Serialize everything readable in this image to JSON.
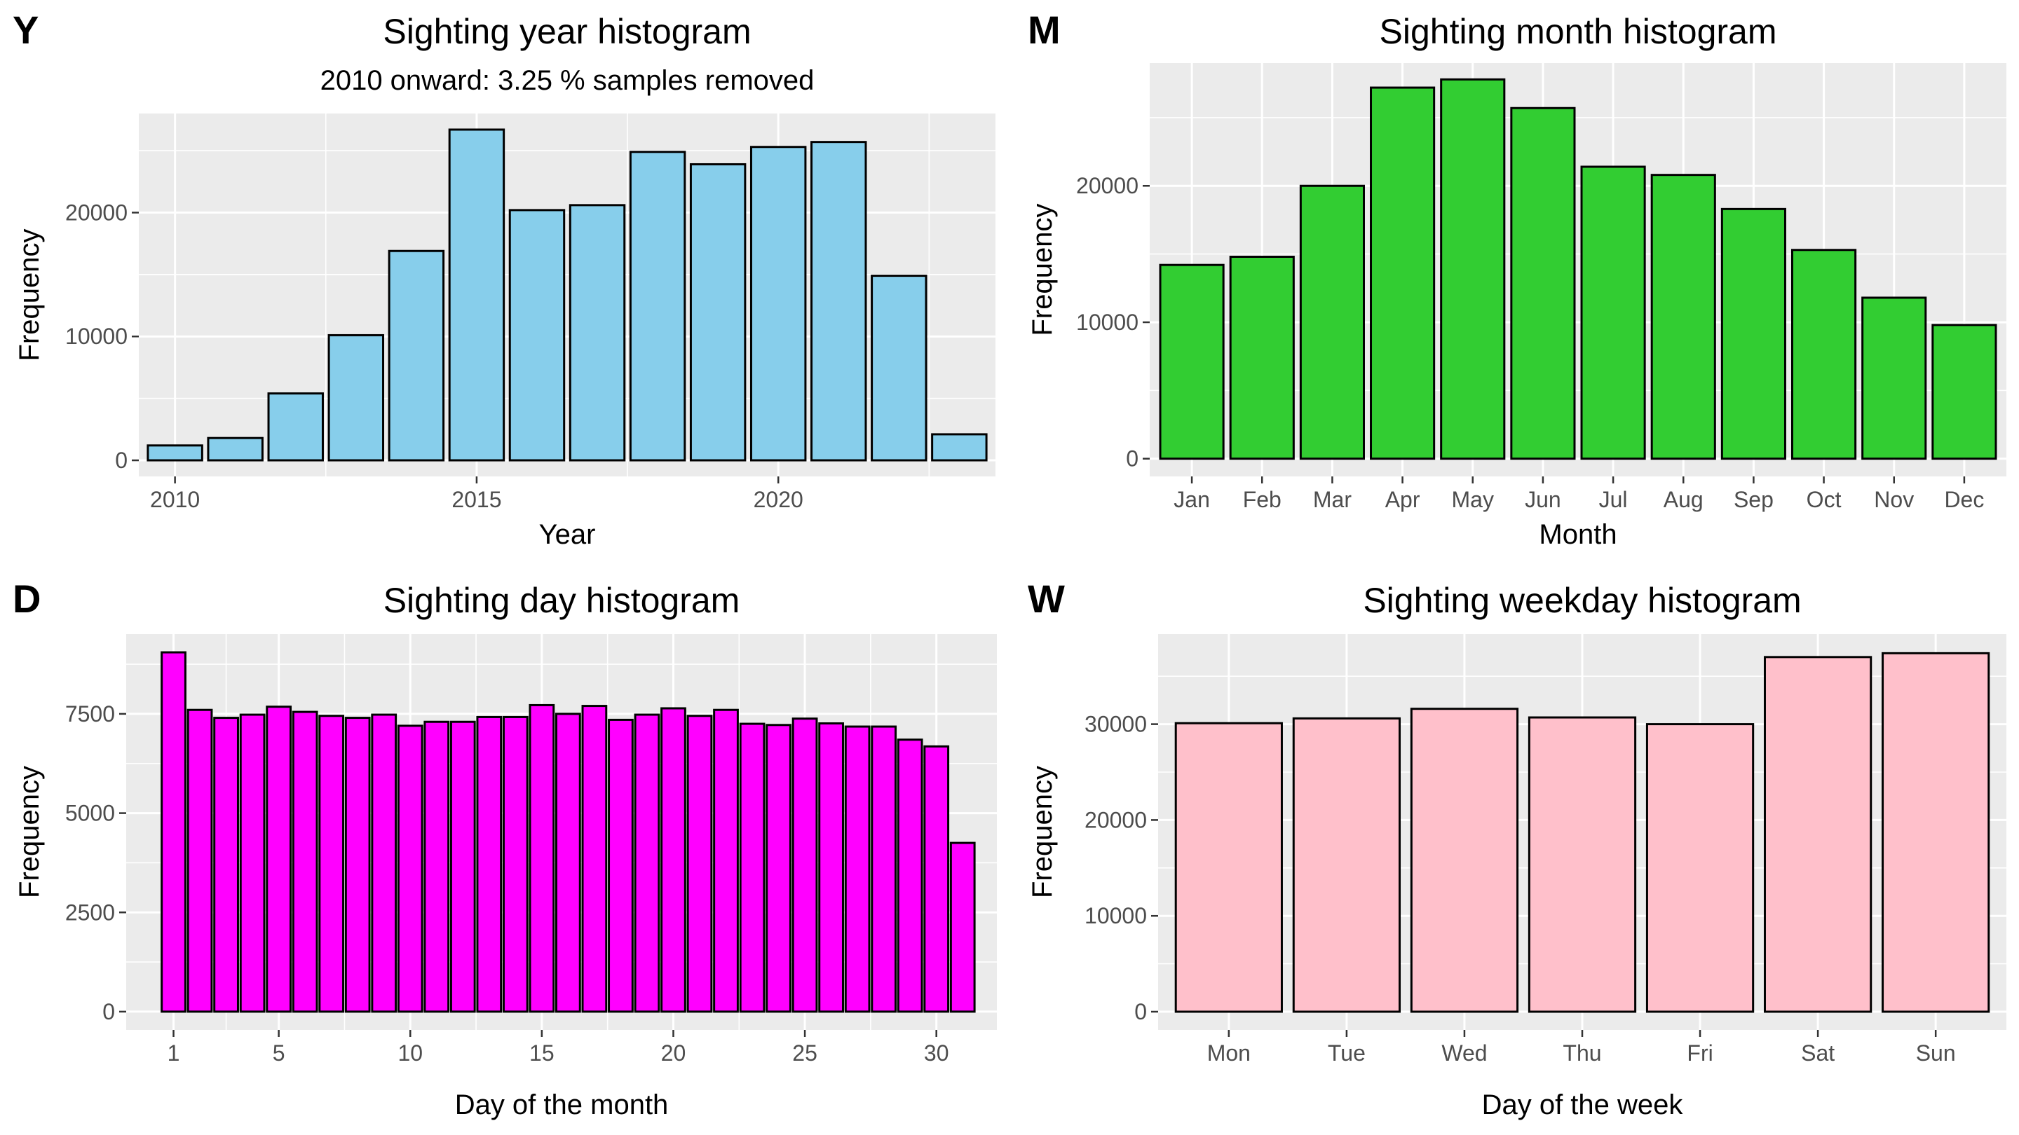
{
  "chart_data": [
    {
      "type": "bar",
      "panel_label": "Y",
      "title": "Sighting year histogram",
      "subtitle": "2010 onward: 3.25 % samples removed",
      "xlabel": "Year",
      "ylabel": "Frequency",
      "x": [
        2010,
        2011,
        2012,
        2013,
        2014,
        2015,
        2016,
        2017,
        2018,
        2019,
        2020,
        2021,
        2022,
        2023
      ],
      "values": [
        1200,
        1800,
        5400,
        10100,
        16900,
        26700,
        20200,
        20600,
        24900,
        23900,
        25300,
        25700,
        14900,
        2100
      ],
      "xlim": [
        2009.4,
        2023.6
      ],
      "ylim": [
        -1300,
        28000
      ],
      "xticks": [
        2010,
        2015,
        2020
      ],
      "yticks": [
        0,
        10000,
        20000
      ],
      "fill": "#87CEEB",
      "grid": true
    },
    {
      "type": "bar",
      "panel_label": "M",
      "title": "Sighting month histogram",
      "xlabel": "Month",
      "ylabel": "Frequency",
      "categories": [
        "Jan",
        "Feb",
        "Mar",
        "Apr",
        "May",
        "Jun",
        "Jul",
        "Aug",
        "Sep",
        "Oct",
        "Nov",
        "Dec"
      ],
      "values": [
        14200,
        14800,
        20000,
        27200,
        27800,
        25700,
        21400,
        20800,
        18300,
        15300,
        11800,
        9800
      ],
      "ylim": [
        -1300,
        29000
      ],
      "yticks": [
        0,
        10000,
        20000
      ],
      "fill": "#32CD32",
      "grid": true
    },
    {
      "type": "bar",
      "panel_label": "D",
      "title": "Sighting day histogram",
      "xlabel": "Day of the month",
      "ylabel": "Frequency",
      "x": [
        1,
        2,
        3,
        4,
        5,
        6,
        7,
        8,
        9,
        10,
        11,
        12,
        13,
        14,
        15,
        16,
        17,
        18,
        19,
        20,
        21,
        22,
        23,
        24,
        25,
        26,
        27,
        28,
        29,
        30,
        31
      ],
      "values": [
        9050,
        7600,
        7400,
        7480,
        7680,
        7550,
        7450,
        7400,
        7480,
        7200,
        7300,
        7300,
        7420,
        7420,
        7720,
        7500,
        7700,
        7350,
        7480,
        7640,
        7450,
        7600,
        7250,
        7220,
        7380,
        7260,
        7180,
        7180,
        6850,
        6680,
        4250
      ],
      "xlim": [
        -0.8,
        32.3
      ],
      "ylim": [
        -460,
        9510
      ],
      "xticks": [
        1,
        5,
        10,
        15,
        20,
        25,
        30
      ],
      "yticks": [
        0,
        2500,
        5000,
        7500
      ],
      "fill": "#FF00FF",
      "grid": true
    },
    {
      "type": "bar",
      "panel_label": "W",
      "title": "Sighting weekday histogram",
      "xlabel": "Day of the week",
      "ylabel": "Frequency",
      "categories": [
        "Mon",
        "Tue",
        "Wed",
        "Thu",
        "Fri",
        "Sat",
        "Sun"
      ],
      "values": [
        30100,
        30600,
        31600,
        30700,
        30000,
        37000,
        37400
      ],
      "ylim": [
        -1900,
        39400
      ],
      "yticks": [
        0,
        10000,
        20000,
        30000
      ],
      "fill": "#FFC0CB",
      "grid": true
    }
  ]
}
